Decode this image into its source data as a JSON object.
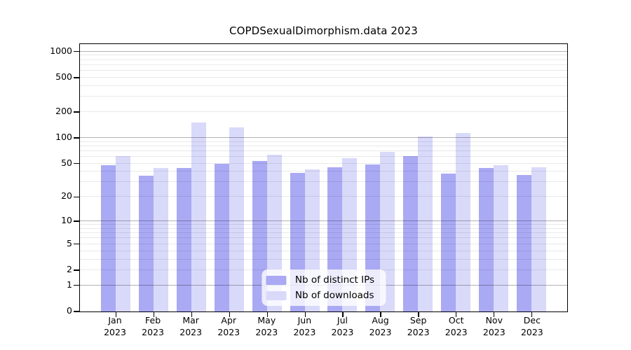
{
  "title": "COPDSexualDimorphism.data 2023",
  "chart_data": {
    "type": "bar",
    "title": "COPDSexualDimorphism.data 2023",
    "scale": "log1p",
    "grid": true,
    "legend_position": "bottom-center",
    "year": "2023",
    "categories": [
      "Jan",
      "Feb",
      "Mar",
      "Apr",
      "May",
      "Jun",
      "Jul",
      "Aug",
      "Sep",
      "Oct",
      "Nov",
      "Dec"
    ],
    "series": [
      {
        "name": "Nb of distinct IPs",
        "color": "#a9a9f4",
        "values": [
          48,
          36,
          44,
          50,
          54,
          39,
          45,
          49,
          61,
          38,
          44,
          37
        ]
      },
      {
        "name": "Nb of downloads",
        "color": "#d9d9fa",
        "values": [
          61,
          44,
          150,
          132,
          63,
          43,
          58,
          68,
          104,
          115,
          48,
          45
        ]
      }
    ],
    "y_ticks": [
      0,
      1,
      2,
      5,
      10,
      20,
      50,
      100,
      200,
      500,
      1000
    ],
    "decade_gridlines": [
      1,
      10,
      100,
      1000
    ],
    "ylim": [
      0,
      1220
    ],
    "xlabel": "",
    "ylabel": ""
  }
}
